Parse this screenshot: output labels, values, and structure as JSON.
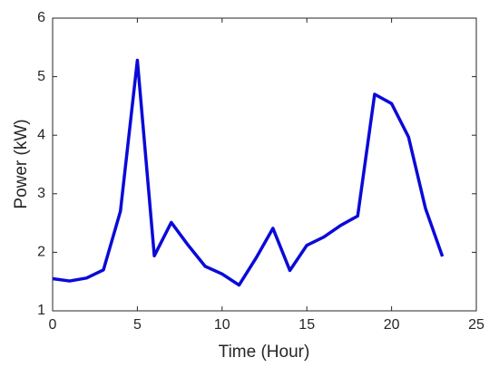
{
  "chart_data": {
    "type": "line",
    "xlabel": "Time (Hour)",
    "ylabel": "Power (kW)",
    "x": [
      0,
      1,
      2,
      3,
      4,
      5,
      6,
      7,
      8,
      9,
      10,
      11,
      12,
      13,
      14,
      15,
      16,
      17,
      18,
      19,
      20,
      21,
      22,
      23
    ],
    "series": [
      {
        "color": "#0a0ad8",
        "values": [
          1.55,
          1.51,
          1.56,
          1.7,
          2.7,
          5.28,
          1.94,
          2.51,
          2.12,
          1.76,
          1.63,
          1.44,
          1.9,
          2.41,
          1.69,
          2.12,
          2.26,
          2.46,
          2.62,
          4.7,
          4.54,
          3.97,
          2.75,
          1.93
        ]
      }
    ],
    "xlim": [
      0,
      25
    ],
    "xticks": [
      0,
      5,
      10,
      15,
      20,
      25
    ],
    "ylim": [
      1,
      6
    ],
    "yticks": [
      1,
      2,
      3,
      4,
      5,
      6
    ],
    "grid": false
  }
}
